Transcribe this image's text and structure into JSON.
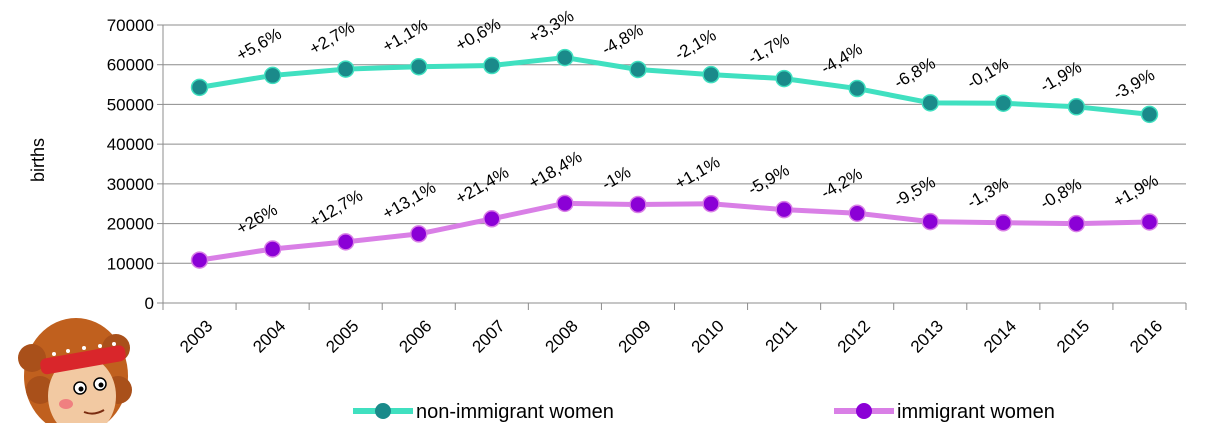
{
  "chart_data": {
    "type": "line",
    "title": "",
    "xlabel": "",
    "ylabel": "births",
    "ylim": [
      0,
      70000
    ],
    "yticks": [
      0,
      10000,
      20000,
      30000,
      40000,
      50000,
      60000,
      70000
    ],
    "grid": true,
    "legend_position": "bottom",
    "categories": [
      "2003",
      "2004",
      "2005",
      "2006",
      "2007",
      "2008",
      "2009",
      "2010",
      "2011",
      "2012",
      "2013",
      "2014",
      "2015",
      "2016"
    ],
    "series": [
      {
        "name": "non-immigrant women",
        "color": "#40E0C0",
        "marker_color": "#1A8A8A",
        "values": [
          54300,
          57300,
          58900,
          59500,
          59800,
          61800,
          58800,
          57500,
          56500,
          54000,
          50400,
          50300,
          49400,
          47500
        ],
        "labels": [
          "",
          "+5,6%",
          "+2,7%",
          "+1,1%",
          "+0,6%",
          "+3,3%",
          "-4,8%",
          "-2,1%",
          "-1,7%",
          "-4,4%",
          "-6,8%",
          "-0,1%",
          "-1,9%",
          "-3,9%"
        ]
      },
      {
        "name": "immigrant women",
        "color": "#D97FE6",
        "marker_color": "#8B00D6",
        "values": [
          10800,
          13600,
          15400,
          17400,
          21200,
          25100,
          24800,
          25000,
          23500,
          22600,
          20500,
          20200,
          20000,
          20400
        ],
        "labels": [
          "",
          "+26%",
          "+12,7%",
          "+13,1%",
          "+21,4%",
          "+18,4%",
          "-1%",
          "+1,1%",
          "-5,9%",
          "-4,2%",
          "-9,5%",
          "-1,3%",
          "-0,8%",
          "+1,9%"
        ]
      }
    ]
  },
  "decoration": {
    "mascot_icon": "cartoon-woman-with-headband"
  }
}
